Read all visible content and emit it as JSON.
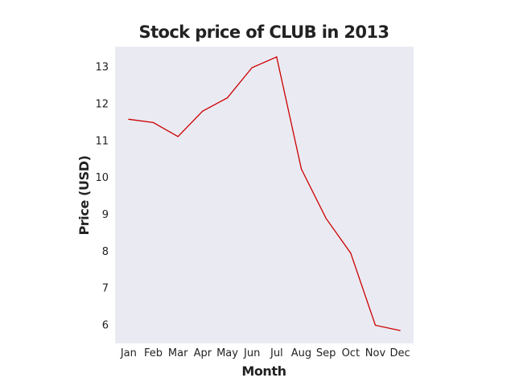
{
  "chart_data": {
    "type": "line",
    "title": "Stock price of CLUB in 2013",
    "xlabel": "Month",
    "ylabel": "Price (USD)",
    "categories": [
      "Jan",
      "Feb",
      "Mar",
      "Apr",
      "May",
      "Jun",
      "Jul",
      "Aug",
      "Sep",
      "Oct",
      "Nov",
      "Dec"
    ],
    "series": [
      {
        "values": [
          11.58,
          11.49,
          11.11,
          11.8,
          12.16,
          12.98,
          13.27,
          10.23,
          8.89,
          7.95,
          5.99,
          5.85
        ],
        "color": "#cc0000"
      }
    ],
    "yticks": [
      6,
      7,
      8,
      9,
      10,
      11,
      12,
      13
    ],
    "ylim": [
      5.5,
      13.55
    ],
    "grid": false,
    "plot_background": "#eaeaf2"
  }
}
